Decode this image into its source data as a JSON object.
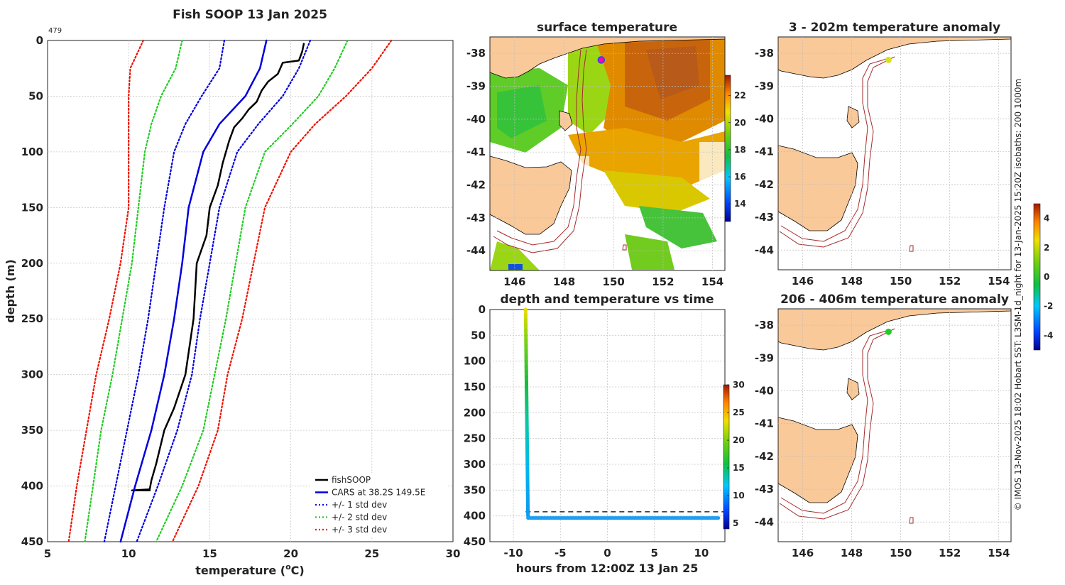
{
  "credit": "© IMOS 13-Nov-2025 18:02 Hobart SST: L3SM-1d_night for 13-Jan-2025 15:20Z isobaths: 200  1000m",
  "colors": {
    "fishsoop": "#000000",
    "cars": "#0000dd",
    "std1": "#0000dd",
    "std2": "#22cc22",
    "std3": "#ee1100",
    "land": "#f9c99a",
    "isobath": "#a52a2a"
  },
  "chart_data": [
    {
      "type": "line",
      "title": "Fish SOOP 13 Jan 2025",
      "annotation": "479",
      "xlabel": "temperature (°C)",
      "xlabel_base": "temperature (",
      "xlabel_sup": "o",
      "xlabel_tail": "C)",
      "ylabel": "depth (m)",
      "xlim": [
        5,
        30
      ],
      "ylim": [
        450,
        0
      ],
      "xticks": [
        "5",
        "10",
        "15",
        "20",
        "25",
        "30"
      ],
      "yticks": [
        "0",
        "50",
        "100",
        "150",
        "200",
        "250",
        "300",
        "350",
        "400",
        "450"
      ],
      "depth": [
        0,
        25,
        50,
        75,
        100,
        150,
        200,
        250,
        300,
        350,
        400,
        450
      ],
      "series": [
        {
          "name": "fishSOOP",
          "color": "#000000",
          "dash": "none",
          "width": 2.5,
          "points": [
            [
              20.8,
              3
            ],
            [
              20.7,
              10
            ],
            [
              20.5,
              18
            ],
            [
              19.5,
              20
            ],
            [
              19.2,
              30
            ],
            [
              18.6,
              37
            ],
            [
              18.2,
              45
            ],
            [
              17.9,
              55
            ],
            [
              17.4,
              62
            ],
            [
              17.0,
              70
            ],
            [
              16.5,
              78
            ],
            [
              16.2,
              90
            ],
            [
              15.8,
              110
            ],
            [
              15.5,
              130
            ],
            [
              15.0,
              150
            ],
            [
              14.8,
              175
            ],
            [
              14.2,
              200
            ],
            [
              14.0,
              250
            ],
            [
              13.5,
              300
            ],
            [
              12.8,
              330
            ],
            [
              12.2,
              350
            ],
            [
              11.7,
              380
            ],
            [
              11.4,
              395
            ],
            [
              11.3,
              403
            ],
            [
              10.2,
              404
            ],
            [
              11.3,
              404
            ]
          ]
        },
        {
          "name": "CARS at 38.2S 149.5E",
          "color": "#0000dd",
          "dash": "none",
          "width": 2.5,
          "values": [
            18.5,
            18.1,
            17.2,
            15.6,
            14.6,
            13.7,
            13.3,
            12.8,
            12.2,
            11.4,
            10.4,
            9.5
          ]
        },
        {
          "name": "+/- 1 std dev",
          "color": "#0000dd",
          "dash": "2,3",
          "width": 2.2,
          "values": [
            15.9,
            15.6,
            14.5,
            13.5,
            12.8,
            12.2,
            11.7,
            11.2,
            10.6,
            9.9,
            9.2,
            8.5
          ]
        },
        {
          "name": "",
          "color": "#0000dd",
          "dash": "2,3",
          "width": 2.2,
          "values": [
            21.2,
            20.5,
            19.5,
            18.0,
            16.7,
            15.6,
            15.0,
            14.4,
            13.9,
            13.0,
            11.8,
            10.5
          ]
        },
        {
          "name": "+/- 2 std dev",
          "color": "#22cc22",
          "dash": "2,3",
          "width": 2.2,
          "values": [
            13.3,
            12.9,
            12.0,
            11.4,
            11.0,
            10.6,
            10.2,
            9.6,
            9.0,
            8.3,
            7.8,
            7.3
          ]
        },
        {
          "name": "",
          "color": "#22cc22",
          "dash": "2,3",
          "width": 2.2,
          "values": [
            23.5,
            22.7,
            21.7,
            20.1,
            18.4,
            17.2,
            16.6,
            16.0,
            15.3,
            14.6,
            13.3,
            11.7
          ]
        },
        {
          "name": "+/- 3 std dev",
          "color": "#ee1100",
          "dash": "2,3",
          "width": 2.2,
          "values": [
            10.9,
            10.1,
            10.0,
            10.0,
            10.0,
            10.0,
            9.5,
            8.8,
            8.0,
            7.4,
            6.8,
            6.3
          ]
        },
        {
          "name": "",
          "color": "#ee1100",
          "dash": "2,3",
          "width": 2.2,
          "values": [
            26.2,
            25.0,
            23.4,
            21.5,
            20.0,
            18.4,
            17.7,
            17.0,
            16.1,
            15.5,
            14.3,
            12.7
          ]
        }
      ],
      "legend": "bottom-right"
    },
    {
      "type": "heatmap",
      "title": "surface temperature",
      "xticks": [
        "146",
        "148",
        "150",
        "152",
        "154"
      ],
      "yticks": [
        "-38",
        "-39",
        "-40",
        "-41",
        "-42",
        "-43",
        "-44"
      ],
      "xlim": [
        145,
        154.5
      ],
      "ylim": [
        -44.6,
        -37.5
      ],
      "colorbar": {
        "ticks": [
          "14",
          "16",
          "18",
          "20",
          "22"
        ],
        "range": [
          12.7,
          23.5
        ]
      },
      "marker": {
        "lon": 149.5,
        "lat": -38.2
      }
    },
    {
      "type": "scatter",
      "title": "depth and temperature vs time",
      "xlabel": "hours from 12:00Z 13 Jan 25",
      "xlim": [
        -12.5,
        12.5
      ],
      "ylim": [
        450,
        0
      ],
      "xticks": [
        "-10",
        "-5",
        "0",
        "5",
        "10"
      ],
      "yticks": [
        "0",
        "50",
        "100",
        "150",
        "200",
        "250",
        "300",
        "350",
        "400",
        "450"
      ],
      "dashed_depth": 392,
      "descent": {
        "time": [
          -8.7,
          -8.45
        ],
        "depth": [
          0,
          400
        ]
      },
      "bottom": {
        "time": [
          -8.45,
          11.8
        ],
        "depth": 404
      },
      "colorbar": {
        "ticks": [
          "5",
          "10",
          "15",
          "20",
          "25",
          "30"
        ],
        "range": [
          4,
          30
        ]
      }
    },
    {
      "type": "heatmap",
      "title": "3 - 202m temperature anomaly",
      "xticks": [
        "146",
        "148",
        "150",
        "152",
        "154"
      ],
      "yticks": [
        "-38",
        "-39",
        "-40",
        "-41",
        "-42",
        "-43",
        "-44"
      ],
      "xlim": [
        145,
        154.5
      ],
      "ylim": [
        -44.6,
        -37.5
      ],
      "marker": {
        "lon": 149.5,
        "lat": -38.2,
        "color": "#d8e020"
      }
    },
    {
      "type": "heatmap",
      "title": "206 - 406m temperature anomaly",
      "xticks": [
        "146",
        "148",
        "150",
        "152",
        "154"
      ],
      "yticks": [
        "-38",
        "-39",
        "-40",
        "-41",
        "-42",
        "-43",
        "-44"
      ],
      "xlim": [
        145,
        154.5
      ],
      "ylim": [
        -44.6,
        -37.5
      ],
      "marker": {
        "lon": 149.5,
        "lat": -38.2,
        "color": "#22cc22"
      },
      "colorbar": {
        "ticks": [
          "4",
          "2",
          "0",
          "-2",
          "-4"
        ],
        "range": [
          -5,
          5
        ]
      }
    }
  ]
}
